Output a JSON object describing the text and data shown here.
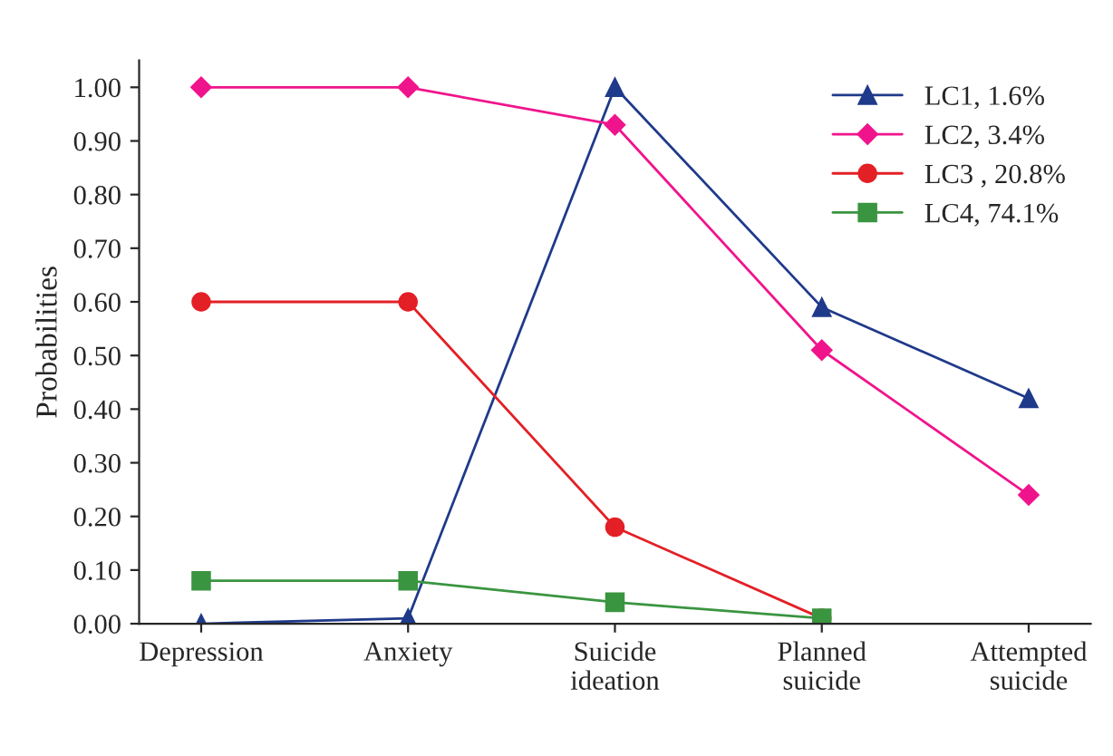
{
  "chart_data": {
    "type": "line",
    "ylabel": "Probabilities",
    "categories": [
      "Depression",
      "Anxiety",
      "Suicide\nideation",
      "Planned\nsuicide",
      "Attempted\nsuicide"
    ],
    "series": [
      {
        "name": "LC1, 1.6%",
        "color": "#1f3a8a",
        "marker": "triangle",
        "values": [
          0.0,
          0.01,
          1.0,
          0.59,
          0.42
        ]
      },
      {
        "name": "LC2, 3.4%",
        "color": "#f0148c",
        "marker": "diamond",
        "values": [
          1.0,
          1.0,
          0.93,
          0.51,
          0.24
        ]
      },
      {
        "name": "LC3 , 20.8%",
        "color": "#e32026",
        "marker": "circle",
        "values": [
          0.6,
          0.6,
          0.18,
          0.01,
          null
        ]
      },
      {
        "name": "LC4, 74.1%",
        "color": "#3a9540",
        "marker": "square",
        "values": [
          0.08,
          0.08,
          0.04,
          0.01,
          null
        ]
      }
    ],
    "ylim": [
      0,
      1.05
    ],
    "yticks": [
      {
        "value": 0,
        "label": "0.00"
      },
      {
        "value": 0.1,
        "label": "0.10"
      },
      {
        "value": 0.2,
        "label": "0.20"
      },
      {
        "value": 0.3,
        "label": "0.30"
      },
      {
        "value": 0.4,
        "label": "0.40"
      },
      {
        "value": 0.5,
        "label": "0.50"
      },
      {
        "value": 0.6,
        "label": "0.60"
      },
      {
        "value": 0.7,
        "label": "0.70"
      },
      {
        "value": 0.8,
        "label": "0.80"
      },
      {
        "value": 0.9,
        "label": "0.90"
      },
      {
        "value": 1.0,
        "label": "1.00"
      }
    ],
    "grid": false,
    "legend": "top right",
    "line_style": "solid"
  }
}
